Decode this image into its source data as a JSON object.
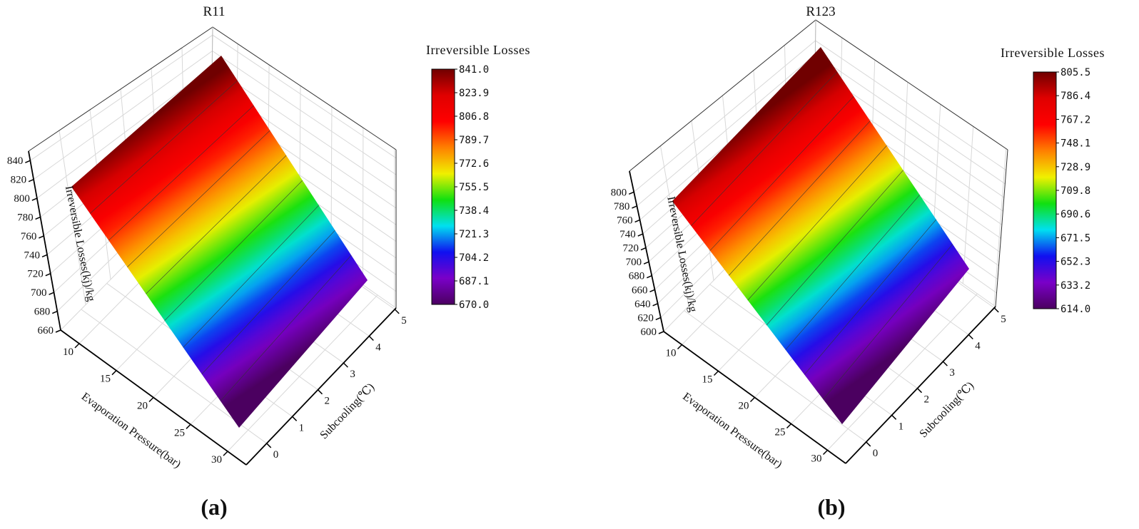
{
  "chart_data": [
    {
      "type": "surface3d",
      "panel_label": "(a)",
      "title": "R11",
      "xlabel": "Evaporation Pressure(bar)",
      "ylabel": "Subcooling(℃)",
      "zlabel": "Irreversible Losses(kj)/kg",
      "x_ticks": [
        10,
        15,
        20,
        25,
        30
      ],
      "y_ticks": [
        0,
        1,
        2,
        3,
        4,
        5
      ],
      "z_ticks": [
        660,
        680,
        700,
        720,
        740,
        760,
        780,
        800,
        820,
        840
      ],
      "xlim": [
        7.5,
        32.5
      ],
      "ylim": [
        -0.8,
        5.05
      ],
      "zlim": [
        660,
        850
      ],
      "surface": {
        "x_range": [
          10,
          30
        ],
        "y_range": [
          0,
          5
        ],
        "z_at_min_pressure": 841.0,
        "z_at_max_pressure": 670.0
      },
      "colorbar": {
        "title": "Irreversible Losses",
        "min": 670.0,
        "max": 841.0,
        "labels": [
          "841.0",
          "823.9",
          "806.8",
          "789.7",
          "772.6",
          "755.5",
          "738.4",
          "721.3",
          "704.2",
          "687.1",
          "670.0"
        ]
      },
      "grid": true
    },
    {
      "type": "surface3d",
      "panel_label": "(b)",
      "title": "R123",
      "xlabel": "Evaporation Pressure(bar)",
      "ylabel": "Subcooling(℃)",
      "zlabel": "Irreversible Losses(kj)/kg",
      "x_ticks": [
        10,
        15,
        20,
        25,
        30
      ],
      "y_ticks": [
        0,
        1,
        2,
        3,
        4,
        5
      ],
      "z_ticks": [
        600,
        620,
        640,
        660,
        680,
        700,
        720,
        740,
        760,
        780,
        800
      ],
      "xlim": [
        7.5,
        32.5
      ],
      "ylim": [
        -0.8,
        5.05
      ],
      "zlim": [
        600,
        830
      ],
      "surface": {
        "x_range": [
          10,
          30
        ],
        "y_range": [
          0,
          5
        ],
        "z_at_min_pressure": 805.5,
        "z_at_max_pressure": 614.0
      },
      "colorbar": {
        "title": "Irreversible Losses",
        "min": 614.0,
        "max": 805.5,
        "labels": [
          "805.5",
          "786.4",
          "767.2",
          "748.1",
          "728.9",
          "709.8",
          "690.6",
          "671.5",
          "652.3",
          "633.2",
          "614.0"
        ]
      },
      "grid": true
    }
  ],
  "colormap": [
    "#4b0060",
    "#7a00c8",
    "#1010f0",
    "#00e0f0",
    "#10e010",
    "#f0f000",
    "#ff8000",
    "#ff0000",
    "#e00000",
    "#700000"
  ]
}
